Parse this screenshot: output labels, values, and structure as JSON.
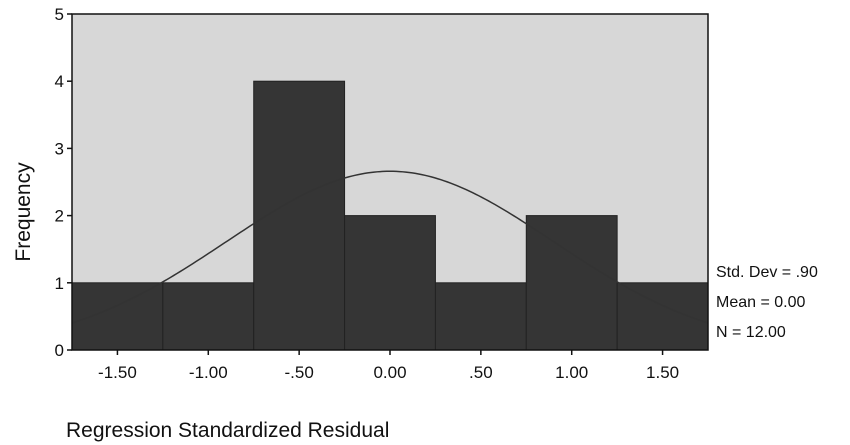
{
  "chart_data": {
    "type": "bar",
    "title": "",
    "xlabel": "Regression Standardized Residual",
    "ylabel": "Frequency",
    "bins": [
      {
        "from": -1.75,
        "to": -1.25,
        "count": 1
      },
      {
        "from": -1.25,
        "to": -0.75,
        "count": 1
      },
      {
        "from": -0.75,
        "to": -0.25,
        "count": 4
      },
      {
        "from": -0.25,
        "to": 0.25,
        "count": 2
      },
      {
        "from": 0.25,
        "to": 0.75,
        "count": 1
      },
      {
        "from": 0.75,
        "to": 1.25,
        "count": 2
      },
      {
        "from": 1.25,
        "to": 1.75,
        "count": 1
      }
    ],
    "xlim": [
      -1.75,
      1.75
    ],
    "ylim": [
      0,
      5
    ],
    "x_ticks": [
      {
        "value": -1.5,
        "label": "-1.50"
      },
      {
        "value": -1.0,
        "label": "-1.00"
      },
      {
        "value": -0.5,
        "label": "-.50"
      },
      {
        "value": 0.0,
        "label": "0.00"
      },
      {
        "value": 0.5,
        "label": ".50"
      },
      {
        "value": 1.0,
        "label": "1.00"
      },
      {
        "value": 1.5,
        "label": "1.50"
      }
    ],
    "y_ticks": [
      {
        "value": 0,
        "label": "0"
      },
      {
        "value": 1,
        "label": "1"
      },
      {
        "value": 2,
        "label": "2"
      },
      {
        "value": 3,
        "label": "3"
      },
      {
        "value": 4,
        "label": "4"
      },
      {
        "value": 5,
        "label": "5"
      }
    ],
    "normal_curve": {
      "mean": 0.0,
      "sd": 0.9,
      "n": 12.0,
      "bin_width": 0.5
    },
    "stats": [
      {
        "label": "Std. Dev = .90"
      },
      {
        "label": "Mean = 0.00"
      },
      {
        "label": "N = 12.00"
      }
    ],
    "colors": {
      "plot_background": "#d7d7d7",
      "bar_fill": "#353535",
      "curve": "#333333",
      "axis": "#111111"
    },
    "grid": false
  }
}
